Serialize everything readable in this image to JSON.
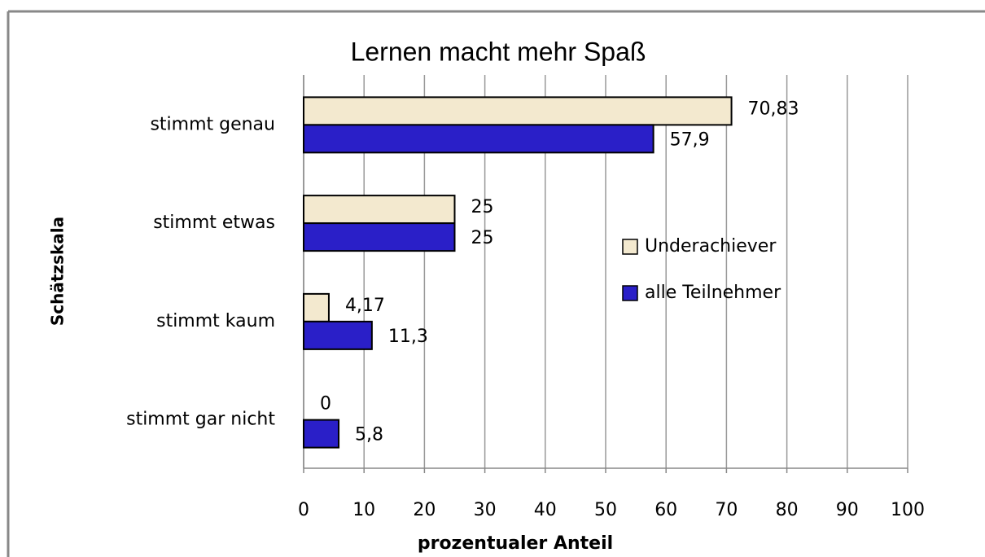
{
  "chart_data": {
    "type": "hbar",
    "title": "Lernen macht mehr Spaß",
    "xlabel": "prozentualer Anteil",
    "ylabel": "Schätzskala",
    "categories": [
      "stimmt genau",
      "stimmt etwas",
      "stimmt kaum",
      "stimmt gar nicht"
    ],
    "series": [
      {
        "name": "Underachiever",
        "color": "#f3e9cf",
        "values": [
          70.83,
          25,
          4.17,
          0
        ],
        "value_labels": [
          "70,83",
          "25",
          "4,17",
          "0"
        ]
      },
      {
        "name": "alle Teilnehmer",
        "color": "#2a1fc8",
        "values": [
          57.9,
          25,
          11.3,
          5.8
        ],
        "value_labels": [
          "57,9",
          "25",
          "11,3",
          "5,8"
        ]
      }
    ],
    "xlim": [
      0,
      100
    ],
    "xticks": [
      0,
      10,
      20,
      30,
      40,
      50,
      60,
      70,
      80,
      90,
      100
    ],
    "grid": true,
    "legend": "right"
  }
}
